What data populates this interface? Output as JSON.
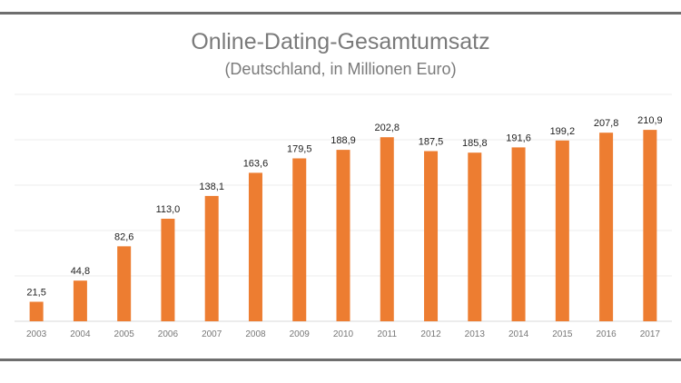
{
  "chart_data": {
    "type": "bar",
    "title": "Online-Dating-Gesamtumsatz",
    "subtitle": "(Deutschland, in Millionen Euro)",
    "xlabel": "",
    "ylabel": "",
    "ylim": [
      0,
      250
    ],
    "grid": true,
    "categories": [
      "2003",
      "2004",
      "2005",
      "2006",
      "2007",
      "2008",
      "2009",
      "2010",
      "2011",
      "2012",
      "2013",
      "2014",
      "2015",
      "2016",
      "2017"
    ],
    "values": [
      21.5,
      44.8,
      82.6,
      113.0,
      138.1,
      163.6,
      179.5,
      188.9,
      202.8,
      187.5,
      185.8,
      191.6,
      199.2,
      207.8,
      210.9
    ],
    "labels": [
      "21,5",
      "44,8",
      "82,6",
      "113,0",
      "138,1",
      "163,6",
      "179,5",
      "188,9",
      "202,8",
      "187,5",
      "185,8",
      "191,6",
      "199,2",
      "207,8",
      "210,9"
    ],
    "bar_color": "#ed7d31"
  }
}
